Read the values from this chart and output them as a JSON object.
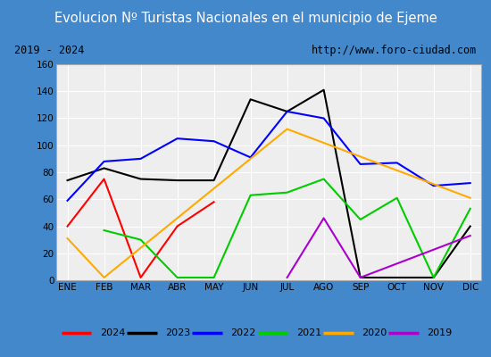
{
  "title": "Evolucion Nº Turistas Nacionales en el municipio de Ejeme",
  "subtitle_left": "2019 - 2024",
  "subtitle_right": "http://www.foro-ciudad.com",
  "months": [
    "ENE",
    "FEB",
    "MAR",
    "ABR",
    "MAY",
    "JUN",
    "JUL",
    "AGO",
    "SEP",
    "OCT",
    "NOV",
    "DIC"
  ],
  "series": {
    "2024": [
      40,
      75,
      2,
      40,
      58,
      null,
      null,
      null,
      null,
      null,
      null,
      null
    ],
    "2023": [
      74,
      83,
      75,
      74,
      74,
      134,
      125,
      141,
      2,
      2,
      2,
      40
    ],
    "2022": [
      59,
      88,
      90,
      105,
      103,
      91,
      125,
      120,
      86,
      87,
      70,
      72
    ],
    "2021": [
      null,
      37,
      30,
      2,
      2,
      63,
      65,
      75,
      45,
      61,
      2,
      53
    ],
    "2020": [
      31,
      2,
      null,
      null,
      null,
      null,
      112,
      null,
      null,
      null,
      null,
      61
    ],
    "2019": [
      null,
      null,
      null,
      null,
      null,
      null,
      2,
      46,
      2,
      null,
      null,
      33
    ]
  },
  "colors": {
    "2024": "#ff0000",
    "2023": "#000000",
    "2022": "#0000ff",
    "2021": "#00cc00",
    "2020": "#ffaa00",
    "2019": "#aa00cc"
  },
  "ylim": [
    0,
    160
  ],
  "yticks": [
    0,
    20,
    40,
    60,
    80,
    100,
    120,
    140,
    160
  ],
  "title_bg": "#4488cc",
  "title_color": "#ffffff",
  "subtitle_bg": "#e0e0e0",
  "plot_bg": "#eeeeee",
  "grid_color": "#ffffff",
  "outer_bg": "#4488cc"
}
